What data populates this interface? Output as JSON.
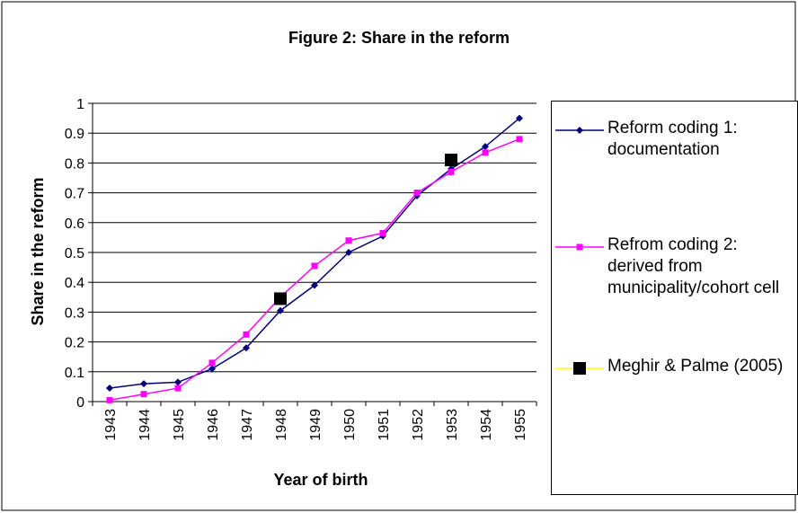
{
  "chart_data": {
    "type": "line",
    "title": "Figure 2: Share in the reform",
    "y_label": "Share in the reform",
    "x_label": "Year of birth",
    "categories": [
      "1943",
      "1944",
      "1945",
      "1946",
      "1947",
      "1948",
      "1949",
      "1950",
      "1951",
      "1952",
      "1953",
      "1954",
      "1955"
    ],
    "series": [
      {
        "name": "Reform coding 1: documentation",
        "color": "#000080",
        "marker": "diamond",
        "values": [
          0.045,
          0.06,
          0.065,
          0.11,
          0.18,
          0.305,
          0.39,
          0.5,
          0.555,
          0.69,
          0.78,
          0.855,
          0.95
        ]
      },
      {
        "name": "Refrom coding 2: derived from municipality/cohort cell",
        "color": "#ff00ff",
        "marker": "square",
        "values": [
          0.005,
          0.025,
          0.045,
          0.13,
          0.225,
          0.35,
          0.455,
          0.54,
          0.565,
          0.7,
          0.77,
          0.835,
          0.88
        ]
      },
      {
        "name": "Meghir & Palme (2005)",
        "color": "#000000",
        "line_color": "#ffff00",
        "marker": "bigsquare",
        "values": [
          null,
          null,
          null,
          null,
          null,
          0.345,
          null,
          null,
          null,
          null,
          0.81,
          null,
          null
        ]
      }
    ],
    "ylim": [
      0,
      1
    ],
    "yticks": [
      0,
      0.1,
      0.2,
      0.3,
      0.4,
      0.5,
      0.6,
      0.7,
      0.8,
      0.9,
      1
    ],
    "grid": true
  }
}
